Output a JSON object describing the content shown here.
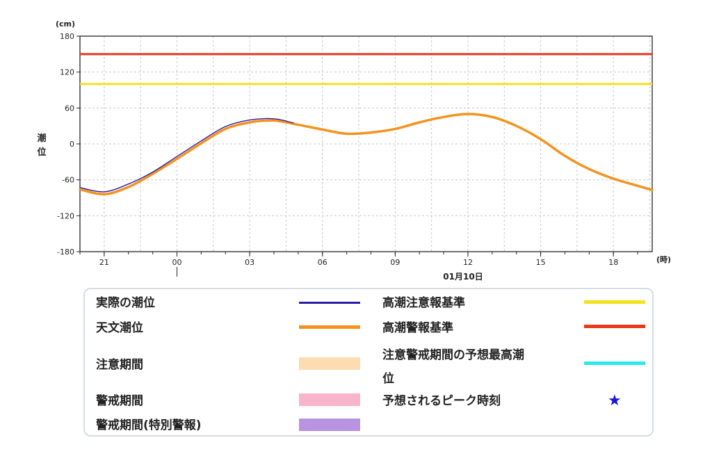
{
  "chart_data": {
    "type": "line",
    "y_unit": "(cm)",
    "x_unit": "(時)",
    "ylabel": "潮位",
    "date_label": "01月10日",
    "ylim": [
      -180,
      180
    ],
    "y_ticks": [
      "180",
      "120",
      "60",
      "0",
      "-60",
      "-120",
      "-180"
    ],
    "x_ticks": [
      "21",
      "00",
      "03",
      "06",
      "09",
      "12",
      "15",
      "18"
    ],
    "x_range_hours": [
      -1,
      22.6
    ],
    "grid": true,
    "thresholds": [
      {
        "name": "高潮警報基準",
        "value": 150,
        "color": "#e8391b"
      },
      {
        "name": "高潮注意報基準",
        "value": 100,
        "color": "#f2e11c"
      }
    ],
    "series": [
      {
        "name": "天文潮位",
        "color": "#f5921e",
        "x": [
          -1,
          0,
          1,
          2,
          3,
          4,
          5,
          6,
          7,
          8,
          9,
          10,
          11,
          12,
          13,
          14,
          15,
          16,
          17,
          18,
          19,
          20,
          21,
          22,
          22.6
        ],
        "y": [
          -76,
          -84,
          -72,
          -50,
          -25,
          1,
          25,
          36,
          39,
          32,
          24,
          17,
          19,
          25,
          36,
          45,
          50,
          45,
          30,
          8,
          -20,
          -42,
          -58,
          -70,
          -77
        ]
      },
      {
        "name": "実際の潮位",
        "color": "#2b1ba8",
        "x": [
          -1,
          0,
          1,
          2,
          3,
          4,
          5,
          6,
          7,
          7.8
        ],
        "y": [
          -73,
          -80,
          -67,
          -47,
          -21,
          5,
          29,
          40,
          42,
          35
        ]
      }
    ]
  },
  "legend": {
    "items": [
      {
        "label": "実際の潮位",
        "color": "#2b1ba8"
      },
      {
        "label": "天文潮位",
        "color": "#f5921e"
      },
      {
        "label": "注意期間",
        "color": "#fcdcb0"
      },
      {
        "label": "警戒期間",
        "color": "#f8b4cb"
      },
      {
        "label": "警戒期間(特別警報)",
        "color": "#b894e0"
      },
      {
        "label": "高潮注意報基準",
        "color": "#f2e11c"
      },
      {
        "label": "高潮警報基準",
        "color": "#e8391b"
      },
      {
        "label": "注意警戒期間の予想最高潮",
        "label2": "位",
        "color": "#2ce6f0"
      },
      {
        "label": "予想されるピーク時刻",
        "symbol": "★",
        "color": "#1515e0"
      }
    ]
  }
}
